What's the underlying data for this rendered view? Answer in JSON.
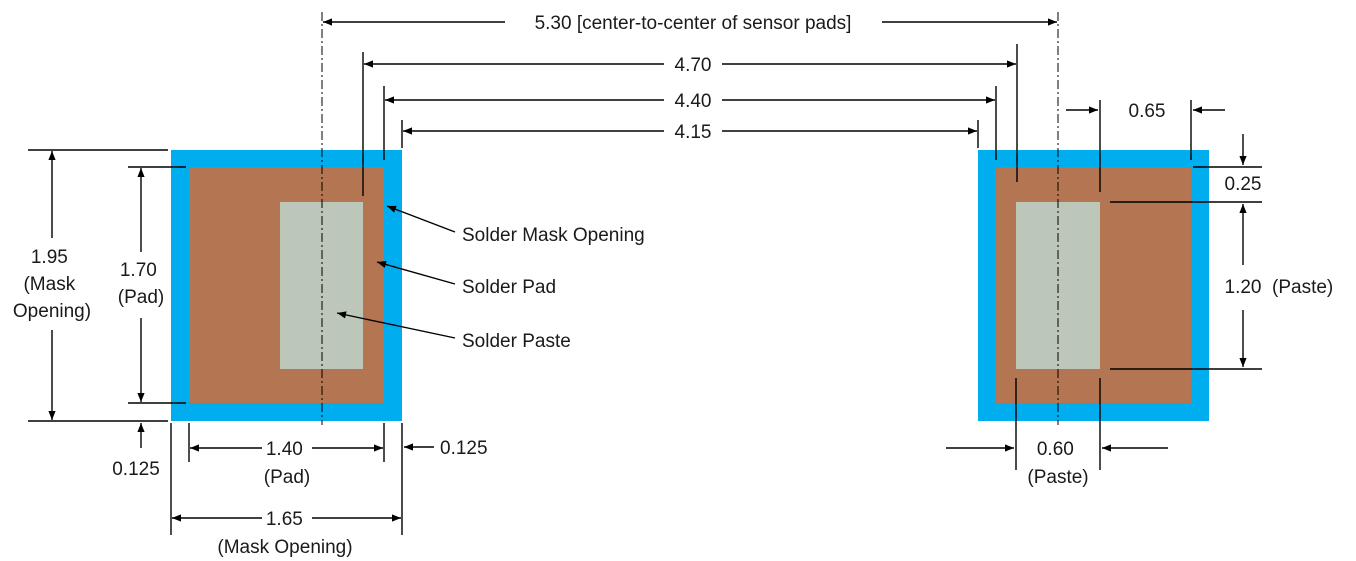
{
  "colors": {
    "mask_opening": "#00AEEF",
    "solder_pad": "#B37552",
    "solder_paste": "#BCC7B9",
    "line": "#000000",
    "background": "#FFFFFF"
  },
  "top_dimensions": {
    "center_to_center": "5.30 [center-to-center of sensor pads]",
    "d470": "4.70",
    "d440": "4.40",
    "d415": "4.15"
  },
  "left_pad": {
    "mask_height": [
      "1.95",
      "(Mask",
      "Opening)"
    ],
    "pad_height": [
      "1.70",
      "(Pad)"
    ],
    "bottom_offset": "0.125",
    "right_offset": "0.125",
    "pad_width": [
      "1.40",
      "(Pad)"
    ],
    "mask_width": [
      "1.65",
      "(Mask Opening)"
    ]
  },
  "callouts": {
    "mask_opening": "Solder Mask Opening",
    "solder_pad": "Solder Pad",
    "solder_paste": "Solder Paste"
  },
  "right_pad": {
    "paste_offset_x": "0.65",
    "paste_offset_y": "0.25",
    "paste_height": "1.20",
    "paste_height_note": "(Paste)",
    "paste_width": [
      "0.60",
      "(Paste)"
    ]
  }
}
